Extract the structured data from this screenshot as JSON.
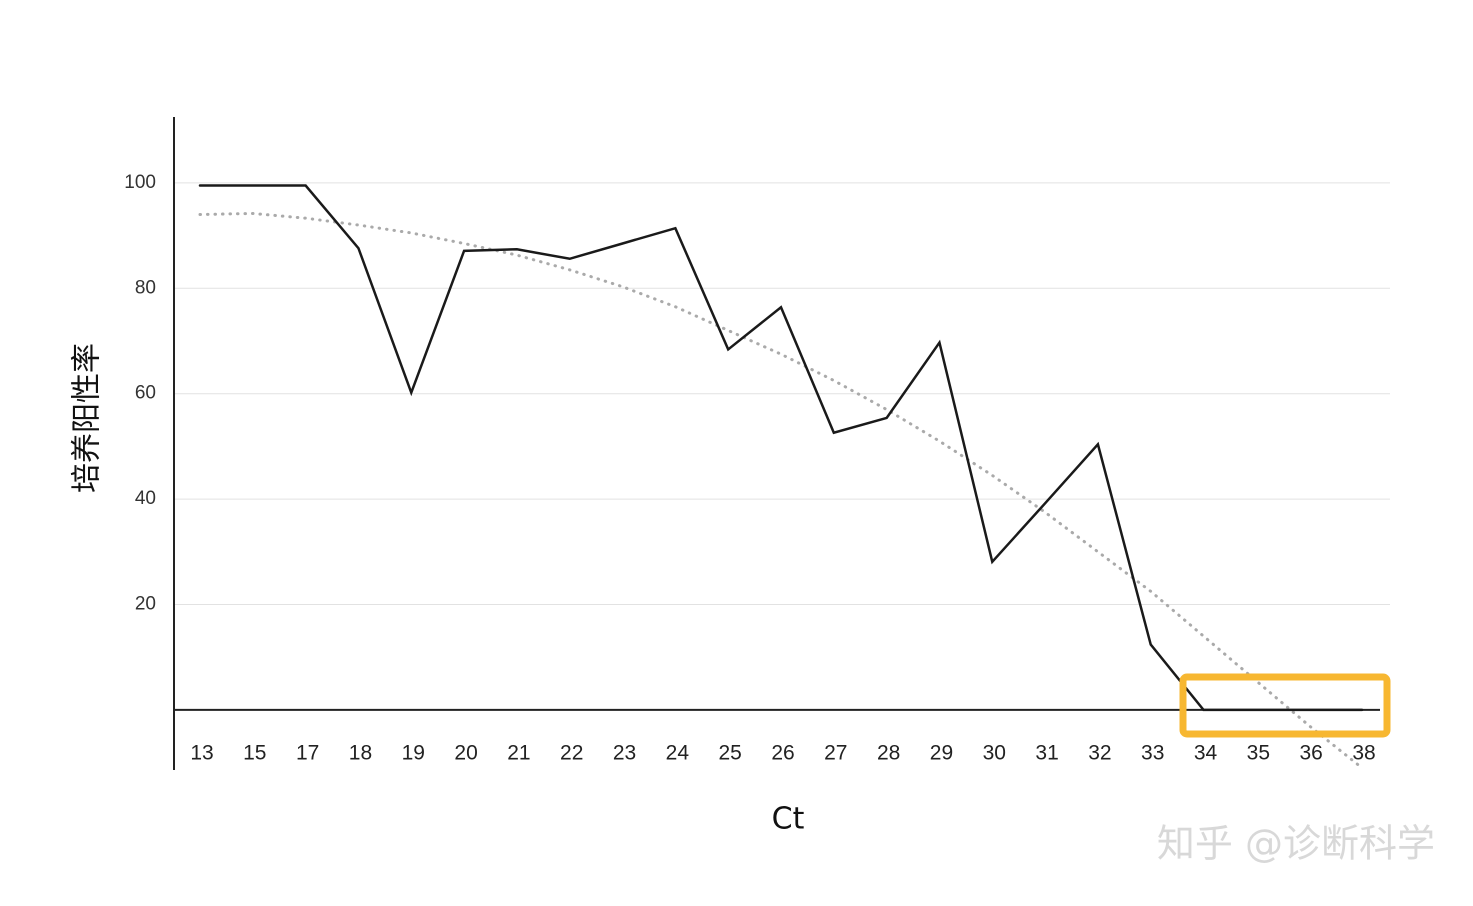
{
  "chart_data": {
    "type": "line",
    "x_label": "Ct",
    "y_label": "培养阳性率",
    "watermark": "知乎 @诊断科学",
    "categories": [
      "13",
      "15",
      "17",
      "18",
      "19",
      "20",
      "21",
      "22",
      "23",
      "24",
      "25",
      "26",
      "27",
      "28",
      "29",
      "30",
      "31",
      "32",
      "33",
      "34",
      "35",
      "36",
      "38"
    ],
    "series": [
      {
        "color": "#1a1a1a",
        "style": "solid",
        "values": [
          99.5,
          99.5,
          99.5,
          87.6,
          60.2,
          87.1,
          87.4,
          85.6,
          88.5,
          91.4,
          68.4,
          76.4,
          52.6,
          55.4,
          69.7,
          28.1,
          39.2,
          50.4,
          12.4,
          0,
          0,
          0,
          0
        ]
      },
      {
        "color": "#aaaaaa",
        "style": "dotted",
        "values": [
          94,
          94.2,
          93.3,
          92,
          90.5,
          88.5,
          86.3,
          83.5,
          80.3,
          76.5,
          72,
          67.5,
          62.5,
          57,
          51,
          44.5,
          37.5,
          30,
          22.5,
          14,
          5.5,
          -3,
          -11
        ]
      }
    ],
    "ylim": [
      -11.4,
      112.5
    ],
    "yticks": [
      20,
      40,
      60,
      80,
      100
    ],
    "grid": true
  }
}
